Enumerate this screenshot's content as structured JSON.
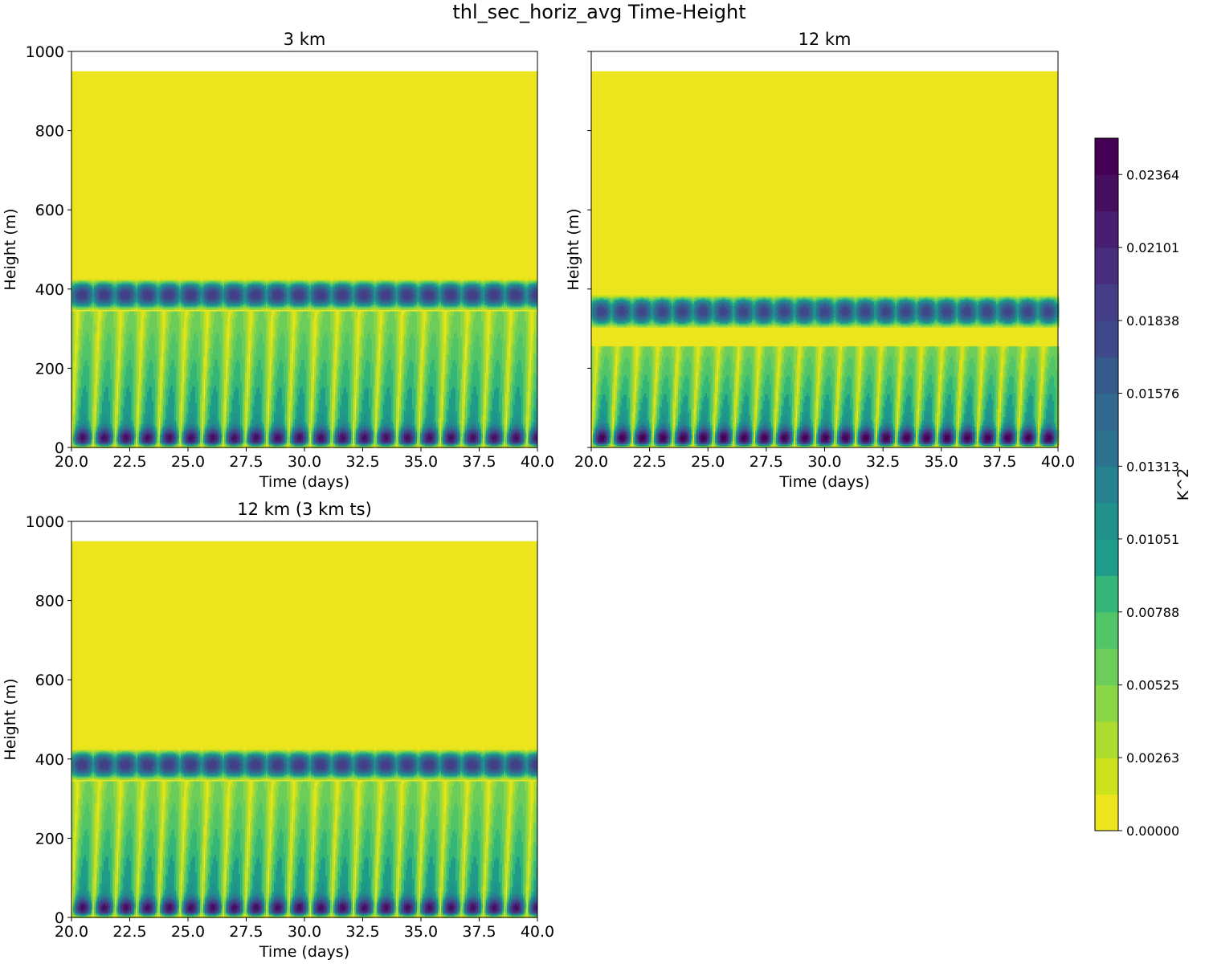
{
  "figure_title": "thl_sec_horiz_avg Time-Height",
  "colormap": [
    "#ece51e",
    "#cde11d",
    "#addc30",
    "#8bd646",
    "#6ccd5a",
    "#52c569",
    "#34b679",
    "#1e9c89",
    "#21918c",
    "#26828e",
    "#2c728e",
    "#31688e",
    "#375a8c",
    "#3e4989",
    "#433e85",
    "#472d7b",
    "#481e70",
    "#450e5f",
    "#440154"
  ],
  "chart_data": [
    {
      "type": "heatmap",
      "title": "3 km",
      "xlabel": "Time (days)",
      "ylabel": "Height (m)",
      "xlim": [
        20.0,
        40.0
      ],
      "ylim": [
        0,
        1000
      ],
      "data_top_height": 950,
      "period_days": 0.93,
      "xticks": [
        "20.0",
        "22.5",
        "25.0",
        "27.5",
        "30.0",
        "32.5",
        "35.0",
        "37.5",
        "40.0"
      ],
      "yticks": [
        "0",
        "200",
        "400",
        "600",
        "800",
        "1000"
      ],
      "features": {
        "lower_band": [
          0,
          345,
          0.0235
        ],
        "upper_band": [
          345,
          425,
          0.0195
        ],
        "band_center": 385
      }
    },
    {
      "type": "heatmap",
      "title": "12 km",
      "xlabel": "Time (days)",
      "ylabel": "Height (m)",
      "xlim": [
        20.0,
        40.0
      ],
      "ylim": [
        0,
        1000
      ],
      "data_top_height": 950,
      "period_days": 0.87,
      "xticks": [
        "20.0",
        "22.5",
        "25.0",
        "27.5",
        "30.0",
        "32.5",
        "35.0",
        "37.5",
        "40.0"
      ],
      "yticks": [
        "",
        "",
        "",
        "",
        "",
        ""
      ],
      "features": {
        "lower_band": [
          0,
          255,
          0.025
        ],
        "upper_band": [
          300,
          385,
          0.0185
        ],
        "band_center": 343
      }
    },
    {
      "type": "heatmap",
      "title": "12 km (3 km ts)",
      "xlabel": "Time (days)",
      "ylabel": "Height (m)",
      "xlim": [
        20.0,
        40.0
      ],
      "ylim": [
        0,
        1000
      ],
      "data_top_height": 950,
      "period_days": 0.93,
      "xticks": [
        "20.0",
        "22.5",
        "25.0",
        "27.5",
        "30.0",
        "32.5",
        "35.0",
        "37.5",
        "40.0"
      ],
      "yticks": [
        "0",
        "200",
        "400",
        "600",
        "800",
        "1000"
      ],
      "features": {
        "lower_band": [
          0,
          345,
          0.0235
        ],
        "upper_band": [
          345,
          425,
          0.0195
        ],
        "band_center": 385
      }
    }
  ],
  "colorbar": {
    "label": "K^2",
    "vmin": 0.0,
    "vmax": 0.02495,
    "levels": 19,
    "ticks": [
      "0.00000",
      "0.00263",
      "0.00525",
      "0.00788",
      "0.01051",
      "0.01313",
      "0.01576",
      "0.01838",
      "0.02101",
      "0.02364"
    ],
    "tick_values": [
      0.0,
      0.00263,
      0.00525,
      0.00788,
      0.01051,
      0.01313,
      0.01576,
      0.01838,
      0.02101,
      0.02364
    ]
  }
}
